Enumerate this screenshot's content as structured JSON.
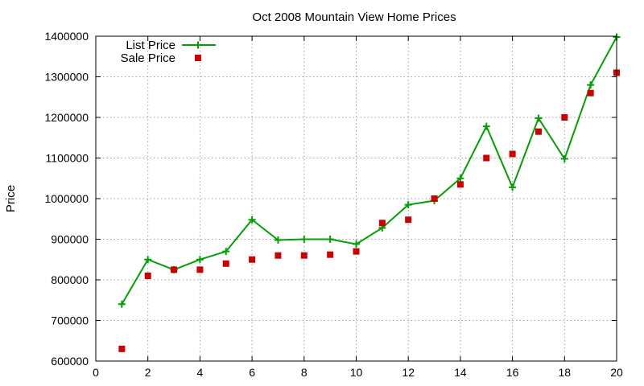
{
  "chart_data": {
    "type": "line",
    "title": "Oct 2008 Mountain View Home Prices",
    "xlabel": "",
    "ylabel": "Price",
    "xlim": [
      0,
      20
    ],
    "ylim": [
      600000,
      1400000
    ],
    "xticks": [
      0,
      2,
      4,
      6,
      8,
      10,
      12,
      14,
      16,
      18,
      20
    ],
    "yticks": [
      600000,
      700000,
      800000,
      900000,
      1000000,
      1100000,
      1200000,
      1300000,
      1400000
    ],
    "xtick_labels": [
      "0",
      "2",
      "4",
      "6",
      "8",
      "10",
      "12",
      "14",
      "16",
      "18",
      "20"
    ],
    "ytick_labels": [
      "600000",
      "700000",
      "800000",
      "900000",
      "1000000",
      "1100000",
      "1200000",
      "1300000",
      "1400000"
    ],
    "grid": true,
    "legend_position": "top-left",
    "x": [
      1,
      2,
      3,
      4,
      5,
      6,
      7,
      8,
      9,
      10,
      11,
      12,
      13,
      14,
      15,
      16,
      17,
      18,
      19,
      20
    ],
    "series": [
      {
        "name": "List Price",
        "style": "line-with-plus-markers",
        "color": "#00a000",
        "values": [
          740000,
          850000,
          825000,
          850000,
          870000,
          948000,
          898000,
          900000,
          900000,
          888000,
          928000,
          985000,
          995000,
          1050000,
          1178000,
          1028000,
          1198000,
          1098000,
          1280000,
          1398000
        ]
      },
      {
        "name": "Sale Price",
        "style": "square-markers",
        "color": "#cc0000",
        "values": [
          630000,
          810000,
          825000,
          825000,
          840000,
          850000,
          860000,
          860000,
          862000,
          870000,
          940000,
          948000,
          1000000,
          1035000,
          1100000,
          1110000,
          1165000,
          1200000,
          1260000,
          1310000
        ]
      }
    ]
  }
}
